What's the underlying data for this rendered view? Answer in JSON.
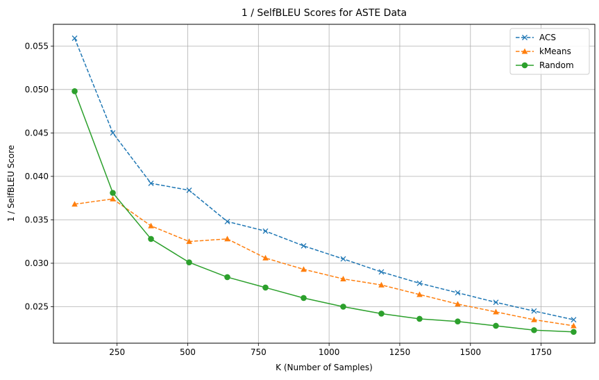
{
  "chart_data": {
    "type": "line",
    "title": "1 / SelfBLEU Scores for ASTE Data",
    "xlabel": "K (Number of Samples)",
    "ylabel": "1 / SelfBLEU Score",
    "xlim": [
      25,
      1940
    ],
    "ylim": [
      0.0208,
      0.0575
    ],
    "xticks": [
      250,
      500,
      750,
      1000,
      1250,
      1500,
      1750
    ],
    "xtick_labels": [
      "250",
      "500",
      "750",
      "1000",
      "1250",
      "1500",
      "1750"
    ],
    "yticks": [
      0.025,
      0.03,
      0.035,
      0.04,
      0.045,
      0.05,
      0.055
    ],
    "ytick_labels": [
      "0.025",
      "0.030",
      "0.035",
      "0.040",
      "0.045",
      "0.050",
      "0.055"
    ],
    "grid": true,
    "legend_position": "top-right",
    "x": [
      100,
      235,
      370,
      505,
      640,
      775,
      910,
      1050,
      1185,
      1320,
      1455,
      1590,
      1725,
      1865
    ],
    "series": [
      {
        "name": "ACS",
        "color": "#1f77b4",
        "linestyle": "dashed",
        "marker": "x",
        "values": [
          0.0559,
          0.045,
          0.0392,
          0.0384,
          0.0348,
          0.0337,
          0.032,
          0.0305,
          0.029,
          0.0277,
          0.0266,
          0.0255,
          0.0245,
          0.0235
        ]
      },
      {
        "name": "kMeans",
        "color": "#ff7f0e",
        "linestyle": "dashed",
        "marker": "triangle",
        "values": [
          0.0368,
          0.0374,
          0.0343,
          0.0325,
          0.0328,
          0.0306,
          0.0293,
          0.0282,
          0.0275,
          0.0264,
          0.0253,
          0.0244,
          0.0235,
          0.0228
        ]
      },
      {
        "name": "Random",
        "color": "#2ca02c",
        "linestyle": "solid",
        "marker": "circle",
        "values": [
          0.0498,
          0.0381,
          0.0328,
          0.0301,
          0.0284,
          0.0272,
          0.026,
          0.025,
          0.0242,
          0.0236,
          0.0233,
          0.0228,
          0.0223,
          0.0221
        ]
      }
    ]
  }
}
